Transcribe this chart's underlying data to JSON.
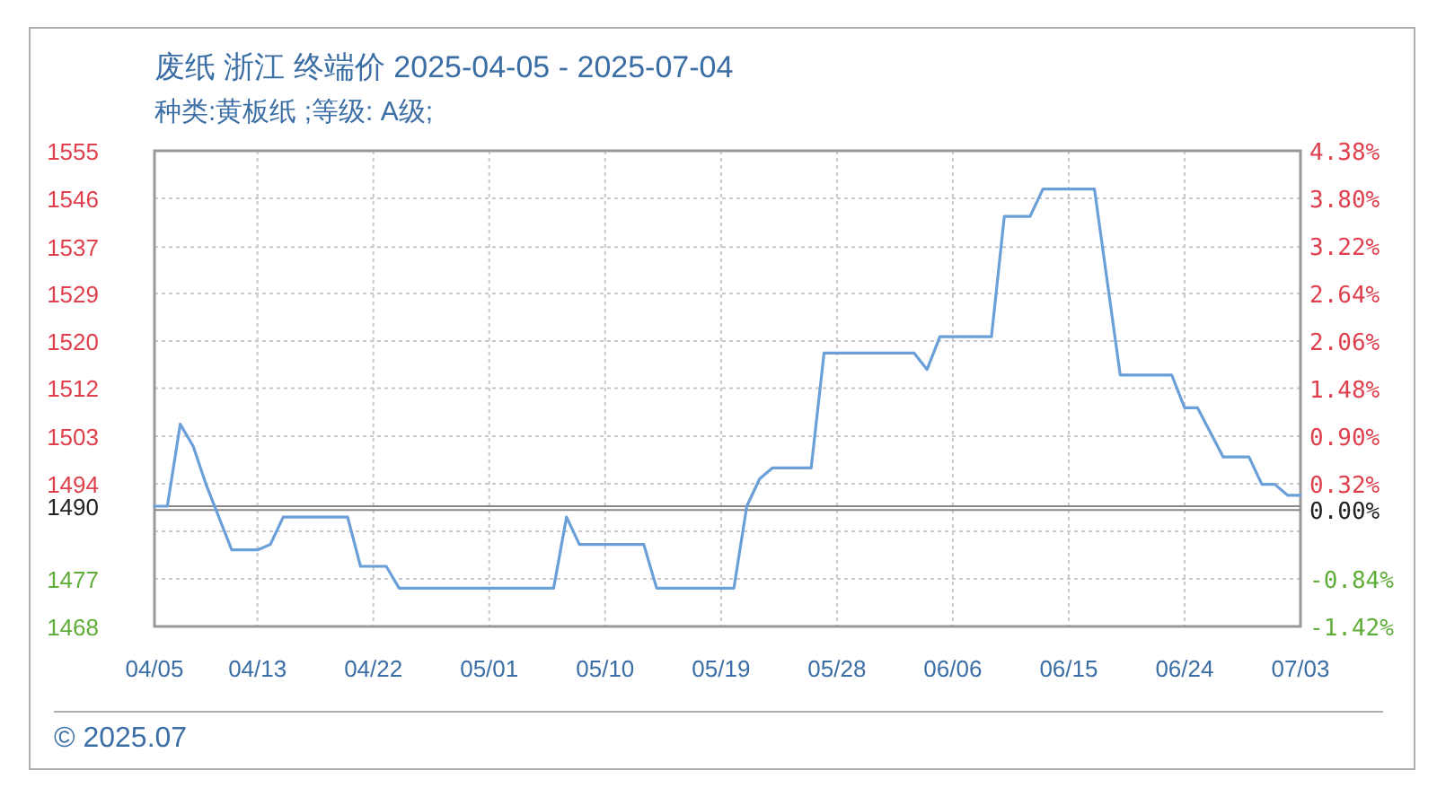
{
  "chart_data": {
    "type": "line",
    "title": "废纸 浙江 终端价 2025-04-05 - 2025-07-04",
    "subtitle": "种类:黄板纸 ;等级: A级;",
    "x": [
      "2025-04-05",
      "2025-04-06",
      "2025-04-07",
      "2025-04-08",
      "2025-04-09",
      "2025-04-10",
      "2025-04-11",
      "2025-04-13",
      "2025-04-14",
      "2025-04-15",
      "2025-04-20",
      "2025-04-21",
      "2025-04-23",
      "2025-04-24",
      "2025-05-06",
      "2025-05-07",
      "2025-05-08",
      "2025-05-13",
      "2025-05-14",
      "2025-05-20",
      "2025-05-21",
      "2025-05-22",
      "2025-05-23",
      "2025-05-26",
      "2025-05-27",
      "2025-06-03",
      "2025-06-04",
      "2025-06-05",
      "2025-06-09",
      "2025-06-10",
      "2025-06-12",
      "2025-06-13",
      "2025-06-17",
      "2025-06-19",
      "2025-06-23",
      "2025-06-24",
      "2025-06-25",
      "2025-06-27",
      "2025-06-29",
      "2025-06-30",
      "2025-07-01",
      "2025-07-02",
      "2025-07-03"
    ],
    "series": [
      {
        "color": "#6a9fd8",
        "values": [
          1490,
          1490,
          1505,
          1501,
          1494,
          1488,
          1482,
          1482,
          1483,
          1488,
          1488,
          1479,
          1479,
          1475,
          1475,
          1488,
          1483,
          1483,
          1475,
          1475,
          1490,
          1495,
          1497,
          1497,
          1518,
          1518,
          1515,
          1521,
          1521,
          1543,
          1543,
          1548,
          1548,
          1514,
          1514,
          1508,
          1508,
          1499,
          1499,
          1494,
          1494,
          1492,
          1492
        ]
      }
    ],
    "xlim": [
      "2025-04-05",
      "2025-07-03"
    ],
    "xticks": [
      {
        "value": "2025-04-05",
        "label": "04/05"
      },
      {
        "value": "2025-04-13",
        "label": "04/13"
      },
      {
        "value": "2025-04-22",
        "label": "04/22"
      },
      {
        "value": "2025-05-01",
        "label": "05/01"
      },
      {
        "value": "2025-05-10",
        "label": "05/10"
      },
      {
        "value": "2025-05-19",
        "label": "05/19"
      },
      {
        "value": "2025-05-28",
        "label": "05/28"
      },
      {
        "value": "2025-06-06",
        "label": "06/06"
      },
      {
        "value": "2025-06-15",
        "label": "06/15"
      },
      {
        "value": "2025-06-24",
        "label": "06/24"
      },
      {
        "value": "2025-07-03",
        "label": "07/03"
      }
    ],
    "ylim": [
      1468,
      1555
    ],
    "yticks": [
      1555,
      {
        "value": 1546.3,
        "label": "1546"
      },
      {
        "value": 1537.4,
        "label": "1537"
      },
      {
        "value": 1528.9,
        "label": "1529"
      },
      {
        "value": 1520.2,
        "label": "1520"
      },
      {
        "value": 1511.6,
        "label": "1512"
      },
      {
        "value": 1502.8,
        "label": "1503"
      },
      {
        "value": 1494.1,
        "label": "1494"
      },
      {
        "value": 1485.4,
        "label": null
      },
      {
        "value": 1476.7,
        "label": "1477"
      },
      1468
    ],
    "y2lim": [
      -1.42,
      4.38
    ],
    "y2ticks": [
      {
        "value": 4.38,
        "label": "4.38%"
      },
      {
        "value": 3.8,
        "label": "3.80%"
      },
      {
        "value": 3.22,
        "label": "3.22%"
      },
      {
        "value": 2.64,
        "label": "2.64%"
      },
      {
        "value": 2.06,
        "label": "2.06%"
      },
      {
        "value": 1.48,
        "label": "1.48%"
      },
      {
        "value": 0.9,
        "label": "0.90%"
      },
      {
        "value": 0.32,
        "label": "0.32%"
      },
      {
        "value": -0.84,
        "label": "-0.84%"
      },
      {
        "value": -1.42,
        "label": "-1.42%"
      }
    ],
    "ref_lines": [
      {
        "axis": "y",
        "value": 1490,
        "label": "1490",
        "color": "#888888"
      },
      {
        "axis": "y2",
        "value": 0,
        "label": "0.00%",
        "color": "#888888"
      }
    ],
    "grid": true,
    "annotations": [
      "© 2025.07"
    ]
  }
}
